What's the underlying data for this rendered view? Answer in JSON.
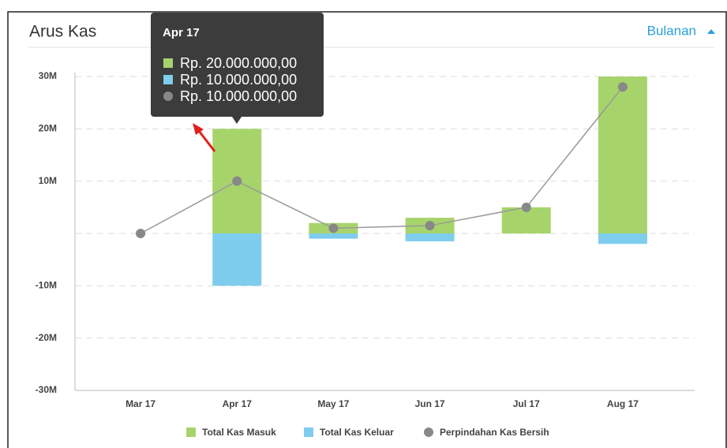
{
  "chart_data": {
    "type": "bar",
    "title": "Arus Kas",
    "period_selector": "Bulanan",
    "categories": [
      "Mar 17",
      "Apr 17",
      "May 17",
      "Jun 17",
      "Jul 17",
      "Aug 17"
    ],
    "series": [
      {
        "name": "Total Kas Masuk",
        "color": "#a6d46b",
        "values": [
          0,
          20,
          2,
          3,
          5,
          30
        ]
      },
      {
        "name": "Total Kas Keluar",
        "color": "#7ecdee",
        "values": [
          0,
          -10,
          -1,
          -1.5,
          0,
          -2
        ]
      },
      {
        "name": "Perpindahan Kas Bersih",
        "type": "line",
        "color": "#888888",
        "values": [
          0,
          10,
          1,
          1.5,
          5,
          28
        ]
      }
    ],
    "ylim": [
      -30,
      30
    ],
    "yticks": [
      {
        "value": 30,
        "label": "30M"
      },
      {
        "value": 20,
        "label": "20M"
      },
      {
        "value": 10,
        "label": "10M"
      },
      {
        "value": -10,
        "label": "-10M"
      },
      {
        "value": -20,
        "label": "-20M"
      },
      {
        "value": -30,
        "label": "-30M"
      }
    ],
    "grid": true,
    "legend": "bottom",
    "tooltip": {
      "title": "Apr 17",
      "items": [
        "Rp. 20.000.000,00",
        "Rp. 10.000.000,00",
        "Rp. 10.000.000,00"
      ]
    }
  }
}
